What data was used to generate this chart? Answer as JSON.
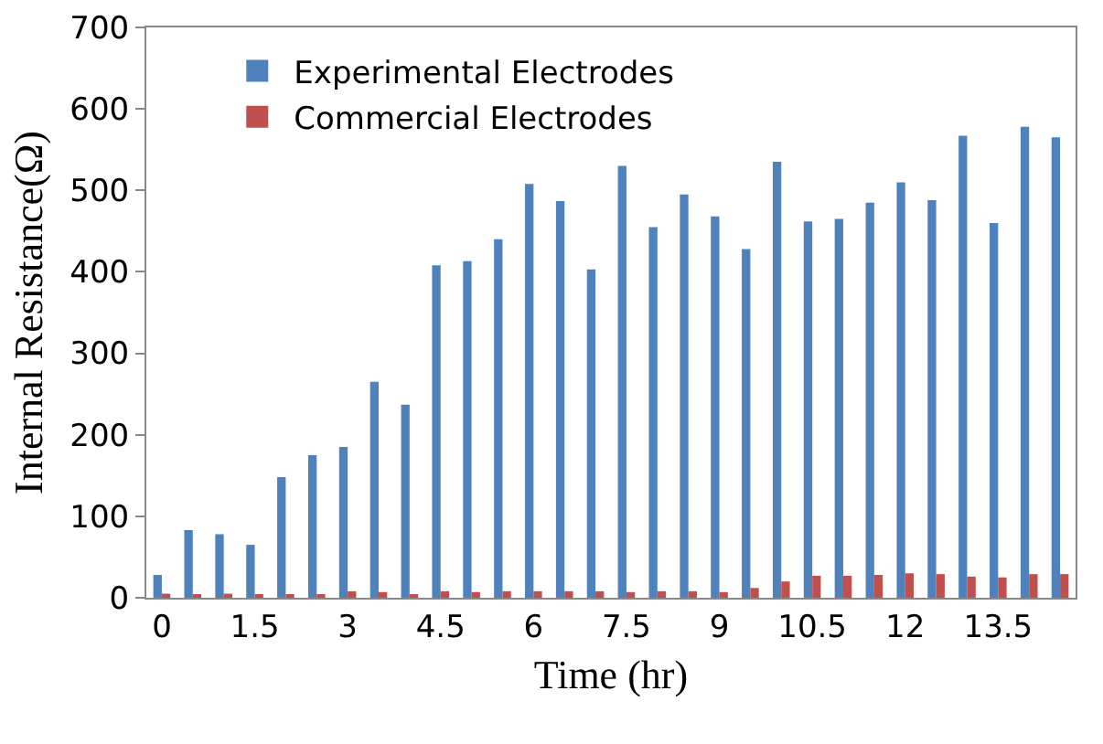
{
  "chart_data": {
    "type": "bar",
    "xlabel": "Time (hr)",
    "ylabel": "Internal Resistance(Ω)",
    "categories": [
      "0",
      null,
      null,
      "1.5",
      null,
      null,
      "3",
      null,
      null,
      "4.5",
      null,
      null,
      "6",
      null,
      null,
      "7.5",
      null,
      null,
      "9",
      null,
      null,
      "10.5",
      null,
      null,
      "12",
      null,
      null,
      "13.5",
      null,
      null
    ],
    "series": [
      {
        "name": "Experimental Electrodes",
        "color": "#4f81bd",
        "values": [
          28,
          83,
          78,
          65,
          148,
          175,
          185,
          265,
          237,
          408,
          413,
          440,
          508,
          487,
          403,
          530,
          455,
          495,
          468,
          428,
          535,
          462,
          465,
          485,
          510,
          488,
          567,
          460,
          578,
          565
        ]
      },
      {
        "name": "Commercial Electrodes",
        "color": "#c0504d",
        "values": [
          5,
          3,
          5,
          4,
          4,
          4,
          8,
          7,
          4,
          8,
          7,
          8,
          8,
          8,
          8,
          7,
          8,
          8,
          7,
          12,
          20,
          27,
          27,
          28,
          30,
          29,
          26,
          25,
          29,
          29
        ]
      }
    ],
    "ylim": [
      0,
      700
    ],
    "yticks": [
      0,
      100,
      200,
      300,
      400,
      500,
      600,
      700
    ],
    "grid": false,
    "legend": "top left"
  }
}
